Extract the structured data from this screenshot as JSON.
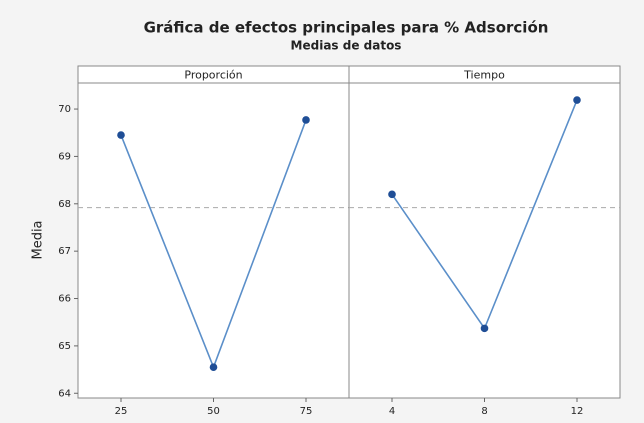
{
  "chart_data": {
    "type": "line",
    "title": "Gráfica de efectos principales para % Adsorción",
    "subtitle": "Medias de datos",
    "ylabel": "Media",
    "ylim": [
      63.9,
      70.55
    ],
    "yticks": [
      64,
      65,
      66,
      67,
      68,
      69,
      70
    ],
    "reference_line": 67.92,
    "line_color": "#5b8fc9",
    "marker_color": "#1f4e96",
    "panels": [
      {
        "title": "Proporción",
        "categories": [
          "25",
          "50",
          "75"
        ],
        "values": [
          69.45,
          64.55,
          69.77
        ]
      },
      {
        "title": "Tiempo",
        "categories": [
          "4",
          "8",
          "12"
        ],
        "values": [
          68.2,
          65.37,
          70.19
        ]
      }
    ]
  }
}
